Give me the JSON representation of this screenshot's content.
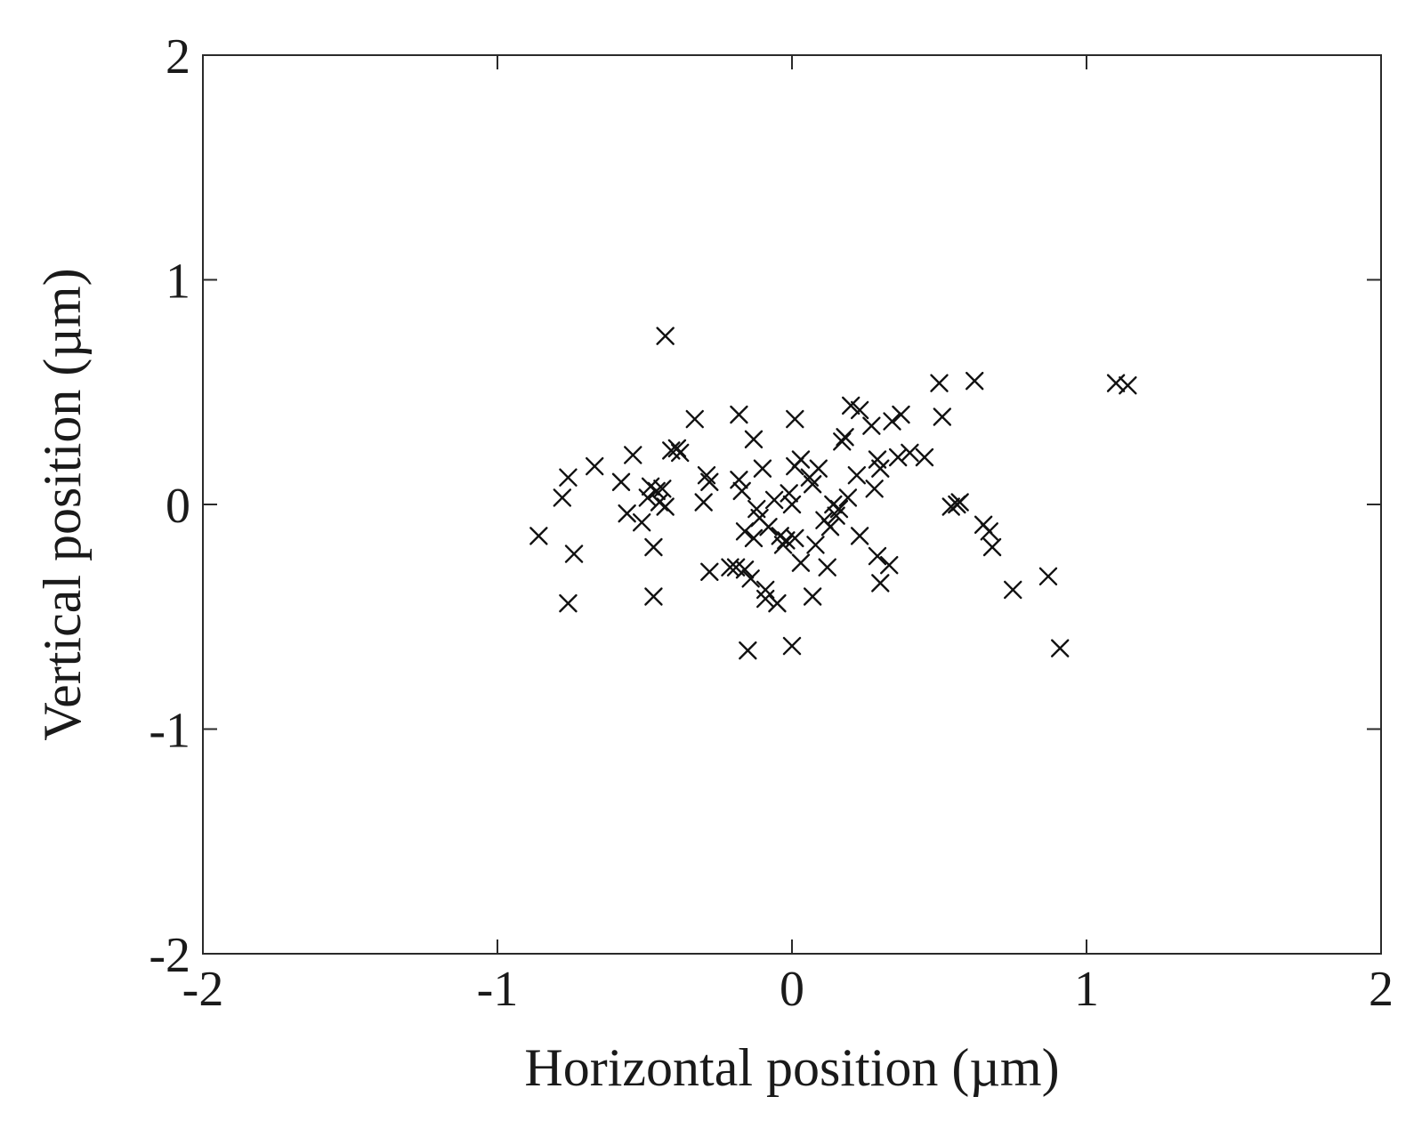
{
  "chart_data": {
    "type": "scatter",
    "title": "",
    "xlabel": "Horizontal position (µm)",
    "ylabel": "Vertical position (µm)",
    "xlim": [
      -2,
      2
    ],
    "ylim": [
      -2,
      2
    ],
    "xticks": [
      -2,
      -1,
      0,
      1,
      2
    ],
    "yticks": [
      -2,
      -1,
      0,
      1,
      2
    ],
    "xtick_labels": [
      "-2",
      "-1",
      "0",
      "1",
      "2"
    ],
    "ytick_labels": [
      "-2",
      "-1",
      "0",
      "1",
      "2"
    ],
    "grid": false,
    "legend": null,
    "marker": "x",
    "marker_color": "#111111",
    "points": [
      [
        -0.86,
        -0.14
      ],
      [
        -0.78,
        0.03
      ],
      [
        -0.76,
        0.12
      ],
      [
        -0.74,
        -0.22
      ],
      [
        -0.76,
        -0.44
      ],
      [
        -0.67,
        0.17
      ],
      [
        -0.58,
        0.1
      ],
      [
        -0.56,
        -0.04
      ],
      [
        -0.54,
        0.22
      ],
      [
        -0.51,
        -0.08
      ],
      [
        -0.49,
        0.03
      ],
      [
        -0.48,
        0.08
      ],
      [
        -0.47,
        -0.19
      ],
      [
        -0.47,
        -0.41
      ],
      [
        -0.46,
        0.06
      ],
      [
        -0.45,
        0.01
      ],
      [
        -0.44,
        0.07
      ],
      [
        -0.43,
        -0.01
      ],
      [
        -0.43,
        0.75
      ],
      [
        -0.41,
        0.24
      ],
      [
        -0.39,
        0.25
      ],
      [
        -0.38,
        0.23
      ],
      [
        -0.33,
        0.38
      ],
      [
        -0.3,
        0.01
      ],
      [
        -0.29,
        0.13
      ],
      [
        -0.28,
        0.1
      ],
      [
        -0.28,
        -0.3
      ],
      [
        -0.21,
        -0.28
      ],
      [
        -0.19,
        -0.28
      ],
      [
        -0.18,
        0.4
      ],
      [
        -0.18,
        0.11
      ],
      [
        -0.17,
        0.06
      ],
      [
        -0.16,
        -0.12
      ],
      [
        -0.16,
        -0.29
      ],
      [
        -0.15,
        -0.65
      ],
      [
        -0.14,
        -0.33
      ],
      [
        -0.13,
        0.29
      ],
      [
        -0.13,
        -0.15
      ],
      [
        -0.12,
        -0.02
      ],
      [
        -0.11,
        -0.06
      ],
      [
        -0.1,
        0.16
      ],
      [
        -0.09,
        -0.38
      ],
      [
        -0.09,
        -0.42
      ],
      [
        -0.08,
        -0.1
      ],
      [
        -0.06,
        0.02
      ],
      [
        -0.05,
        -0.44
      ],
      [
        -0.04,
        -0.14
      ],
      [
        -0.03,
        -0.18
      ],
      [
        -0.02,
        -0.16
      ],
      [
        -0.01,
        0.05
      ],
      [
        0.0,
        0.0
      ],
      [
        0.01,
        -0.15
      ],
      [
        0.01,
        0.17
      ],
      [
        0.01,
        0.38
      ],
      [
        0.0,
        -0.63
      ],
      [
        0.03,
        0.2
      ],
      [
        0.03,
        -0.26
      ],
      [
        0.06,
        0.12
      ],
      [
        0.07,
        0.09
      ],
      [
        0.07,
        -0.41
      ],
      [
        0.08,
        -0.18
      ],
      [
        0.09,
        0.16
      ],
      [
        0.11,
        -0.07
      ],
      [
        0.12,
        -0.28
      ],
      [
        0.13,
        -0.1
      ],
      [
        0.14,
        0.0
      ],
      [
        0.15,
        -0.05
      ],
      [
        0.16,
        -0.02
      ],
      [
        0.17,
        0.28
      ],
      [
        0.18,
        0.3
      ],
      [
        0.19,
        0.03
      ],
      [
        0.2,
        0.44
      ],
      [
        0.22,
        0.13
      ],
      [
        0.23,
        0.42
      ],
      [
        0.23,
        -0.14
      ],
      [
        0.27,
        0.35
      ],
      [
        0.28,
        0.07
      ],
      [
        0.29,
        0.2
      ],
      [
        0.29,
        -0.23
      ],
      [
        0.3,
        0.16
      ],
      [
        0.3,
        -0.35
      ],
      [
        0.33,
        -0.27
      ],
      [
        0.34,
        0.37
      ],
      [
        0.36,
        0.21
      ],
      [
        0.37,
        0.4
      ],
      [
        0.4,
        0.23
      ],
      [
        0.45,
        0.21
      ],
      [
        0.5,
        0.54
      ],
      [
        0.51,
        0.39
      ],
      [
        0.54,
        -0.01
      ],
      [
        0.56,
        0.0
      ],
      [
        0.57,
        0.01
      ],
      [
        0.62,
        0.55
      ],
      [
        0.65,
        -0.09
      ],
      [
        0.67,
        -0.12
      ],
      [
        0.68,
        -0.19
      ],
      [
        0.75,
        -0.38
      ],
      [
        0.87,
        -0.32
      ],
      [
        0.91,
        -0.64
      ],
      [
        1.1,
        0.54
      ],
      [
        1.14,
        0.53
      ]
    ]
  }
}
